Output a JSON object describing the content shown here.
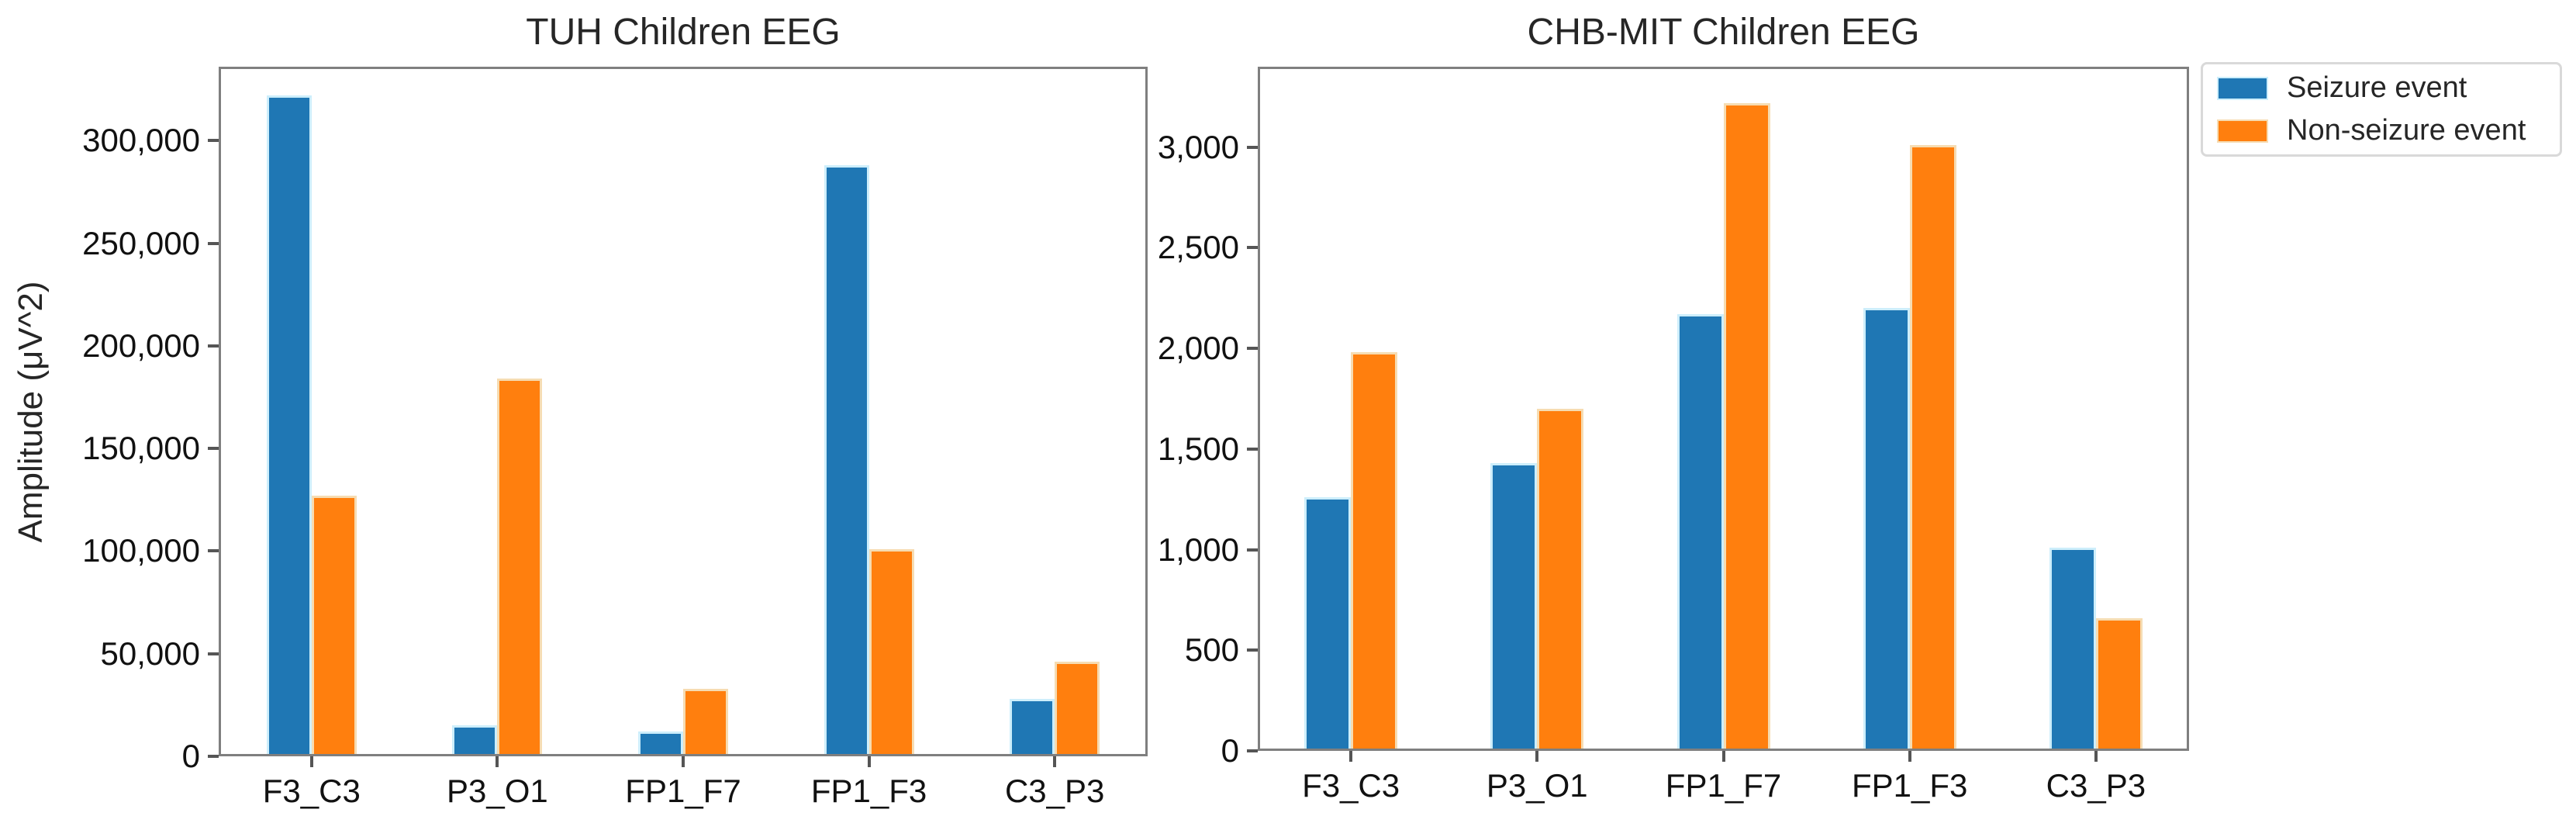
{
  "figure": {
    "background": "#ffffff",
    "spine_color": "#7f7f7f",
    "tick_color": "#555555"
  },
  "chart_data": [
    {
      "type": "bar",
      "title": "TUH Children EEG",
      "ylabel": "Amplitude (μV^2)",
      "xlabel": "",
      "categories": [
        "F3_C3",
        "P3_O1",
        "FP1_F7",
        "FP1_F3",
        "C3_P3"
      ],
      "series": [
        {
          "name": "Seizure event",
          "color": "#1f77b4",
          "edge_color": "#cdeefb",
          "values": [
            322000,
            15000,
            12000,
            288000,
            28000
          ]
        },
        {
          "name": "Non-seizure event",
          "color": "#ff7f0e",
          "edge_color": "#f6dcb2",
          "values": [
            127000,
            184000,
            33000,
            101000,
            46000
          ]
        }
      ],
      "ylim": [
        0,
        336000
      ],
      "yticks": [
        0,
        50000,
        100000,
        150000,
        200000,
        250000,
        300000
      ],
      "grid": false,
      "legend_position": "none"
    },
    {
      "type": "bar",
      "title": "CHB-MIT Children EEG",
      "ylabel": "",
      "xlabel": "",
      "categories": [
        "F3_C3",
        "P3_O1",
        "FP1_F7",
        "FP1_F3",
        "C3_P3"
      ],
      "series": [
        {
          "name": "Seizure event",
          "color": "#1f77b4",
          "edge_color": "#cdeefb",
          "values": [
            1260,
            1430,
            2170,
            2200,
            1010
          ]
        },
        {
          "name": "Non-seizure event",
          "color": "#ff7f0e",
          "edge_color": "#f6dcb2",
          "values": [
            1980,
            1700,
            3220,
            3010,
            660
          ]
        }
      ],
      "ylim": [
        0,
        3400
      ],
      "yticks": [
        0,
        500,
        1000,
        1500,
        2000,
        2500,
        3000
      ],
      "grid": false,
      "legend_position": "outside upper right"
    }
  ],
  "legend": {
    "items": [
      {
        "label": "Seizure event",
        "color": "#1f77b4"
      },
      {
        "label": "Non-seizure event",
        "color": "#ff7f0e"
      }
    ]
  }
}
